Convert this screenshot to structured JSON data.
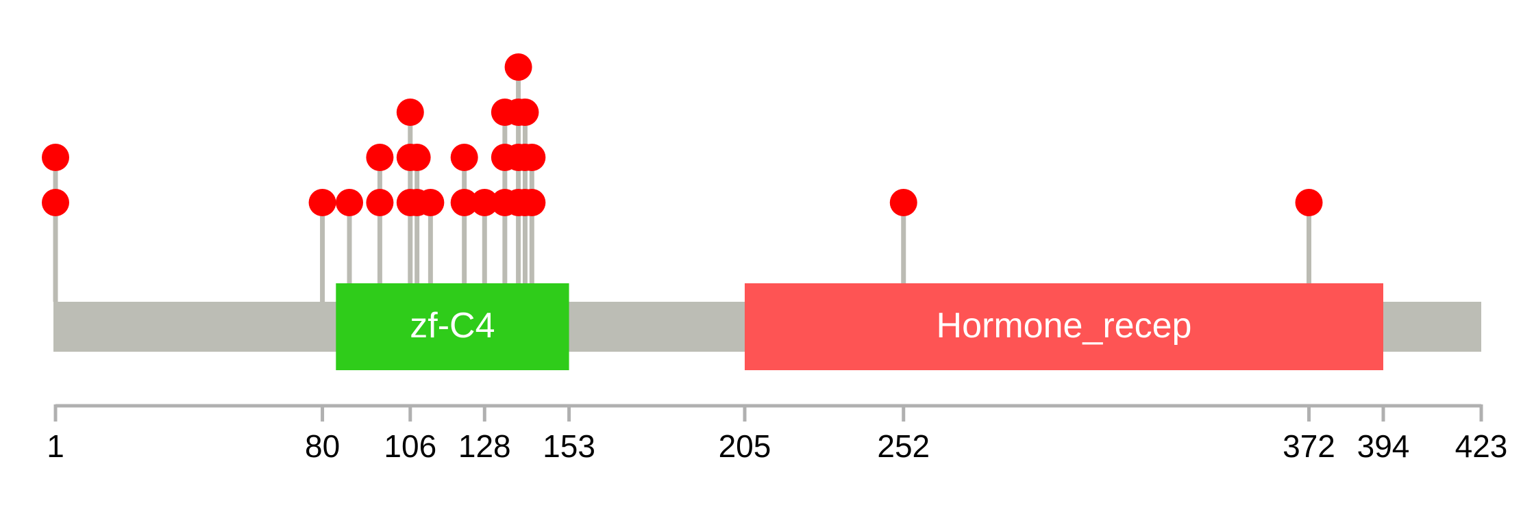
{
  "chart_data": {
    "type": "lollipop",
    "xlim": [
      1,
      423
    ],
    "xticks": [
      1,
      80,
      106,
      128,
      153,
      205,
      252,
      372,
      394,
      423
    ],
    "x": [
      1,
      80,
      88,
      97,
      106,
      108,
      112,
      122,
      128,
      134,
      138,
      140,
      142,
      252,
      372
    ],
    "values": [
      2,
      1,
      1,
      2,
      3,
      2,
      1,
      2,
      1,
      3,
      4,
      3,
      2,
      1,
      1
    ],
    "color": "#ff0000",
    "backbone_color": "#bcbdb5",
    "domains": [
      {
        "name": "zf-C4",
        "start": 84,
        "end": 153,
        "color": "#2fcc1a"
      },
      {
        "name": "Hormone_recep",
        "start": 205,
        "end": 394,
        "color": "#fe5454"
      }
    ]
  }
}
